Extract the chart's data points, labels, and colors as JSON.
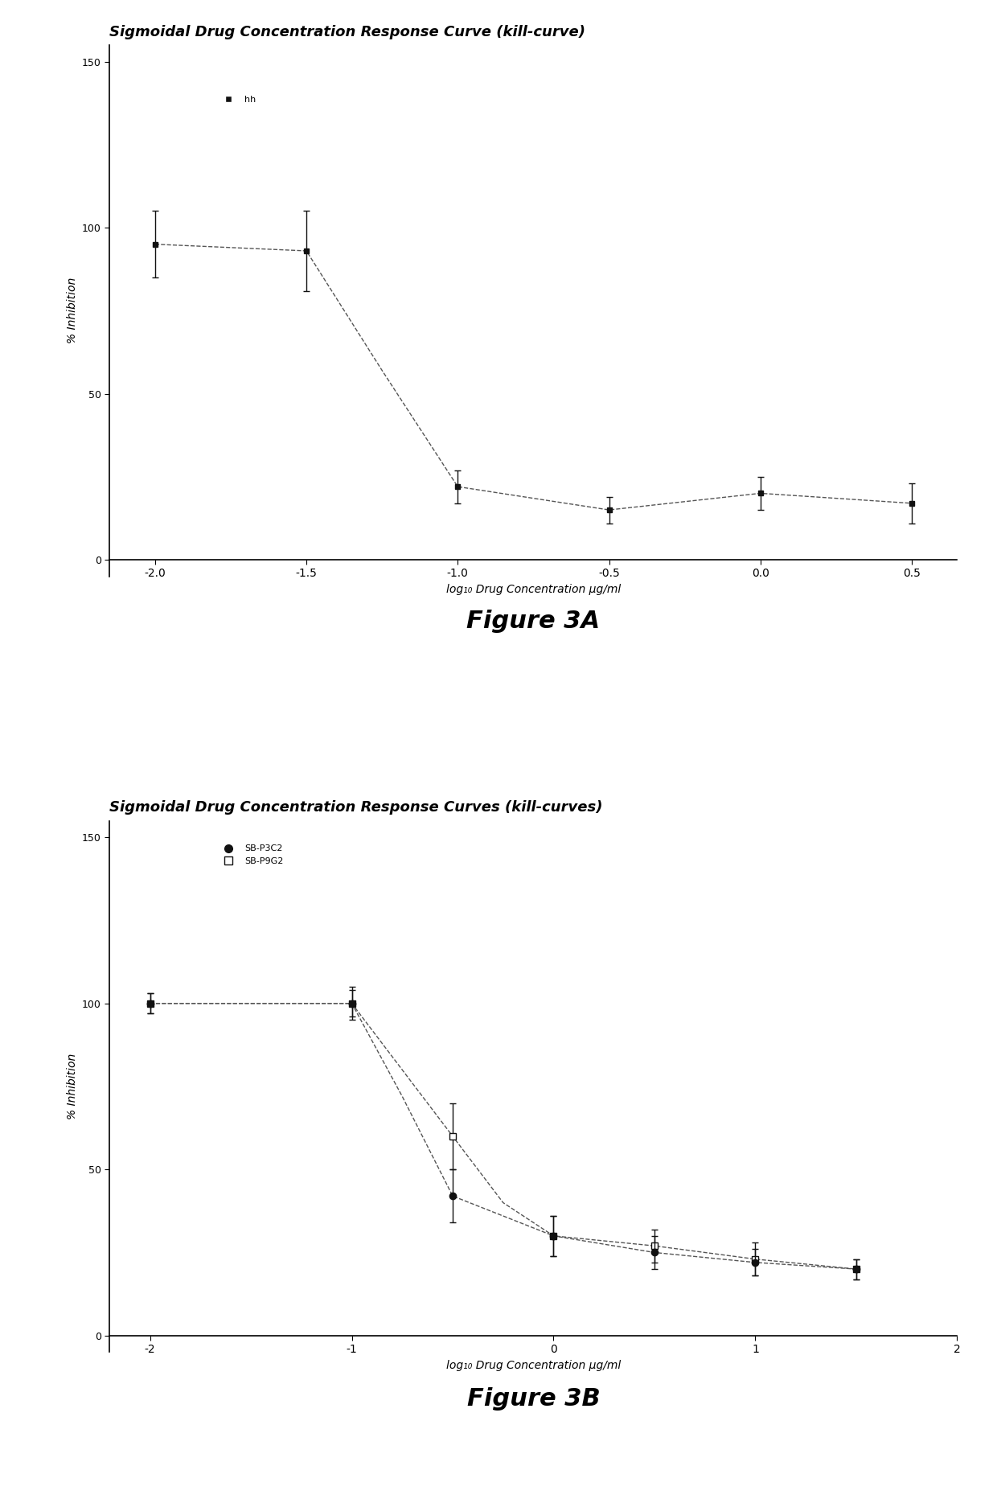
{
  "fig3a": {
    "title": "Sigmoidal Drug Concentration Response Curve (kill-curve)",
    "xlabel": "log₁₀ Drug Concentration µg/ml",
    "ylabel": "% Inhibition",
    "legend_label": "hh",
    "x": [
      -2.0,
      -1.5,
      -1.0,
      -0.5,
      0.0,
      0.5
    ],
    "y": [
      95,
      93,
      22,
      15,
      20,
      17
    ],
    "yerr": [
      10,
      12,
      5,
      4,
      5,
      6
    ],
    "xlim": [
      -2.15,
      0.65
    ],
    "ylim": [
      -5,
      155
    ],
    "yticks": [
      0,
      50,
      100,
      150
    ],
    "xticks": [
      -2.0,
      -1.5,
      -1.0,
      -0.5,
      0.0,
      0.5
    ],
    "xtick_labels": [
      "-2.0",
      "-1.5",
      "-1.0",
      "-0.5",
      "0.0",
      "0.5"
    ],
    "curve_x": [
      -2.0,
      -1.5,
      -1.25,
      -1.0,
      -0.5,
      0.0,
      0.5
    ],
    "curve_y": [
      95,
      93,
      57,
      22,
      15,
      20,
      17
    ],
    "figure_label": "Figure 3A"
  },
  "fig3b": {
    "title": "Sigmoidal Drug Concentration Response Curves (kill-curves)",
    "xlabel": "log₁₀ Drug Concentration µg/ml",
    "ylabel": "% Inhibition",
    "legend_label1": "SB-P3C2",
    "legend_label2": "SB-P9G2",
    "series1": {
      "x": [
        -2.0,
        -1.0,
        -0.5,
        0.0,
        0.5,
        1.0,
        1.5
      ],
      "y": [
        100,
        100,
        42,
        30,
        25,
        22,
        20
      ],
      "yerr": [
        3,
        4,
        8,
        6,
        5,
        4,
        3
      ],
      "curve_x": [
        -2.0,
        -1.0,
        -0.75,
        -0.5,
        0.0,
        0.5,
        1.0,
        1.5
      ],
      "curve_y": [
        100,
        100,
        72,
        42,
        30,
        25,
        22,
        20
      ]
    },
    "series2": {
      "x": [
        -2.0,
        -1.0,
        -0.5,
        0.0,
        0.5,
        1.0,
        1.5
      ],
      "y": [
        100,
        100,
        60,
        30,
        27,
        23,
        20
      ],
      "yerr": [
        3,
        5,
        10,
        6,
        5,
        5,
        3
      ],
      "curve_x": [
        -2.0,
        -1.0,
        -0.5,
        -0.25,
        0.0,
        0.5,
        1.0,
        1.5
      ],
      "curve_y": [
        100,
        100,
        60,
        40,
        30,
        27,
        23,
        20
      ]
    },
    "xlim": [
      -2.2,
      2.0
    ],
    "ylim": [
      -5,
      155
    ],
    "yticks": [
      0,
      50,
      100,
      150
    ],
    "xticks": [
      -2,
      -1,
      0,
      1,
      2
    ],
    "xtick_labels": [
      "-2",
      "-1",
      "0",
      "1",
      "2"
    ],
    "figure_label": "Figure 3B"
  },
  "bg_color": "#ffffff",
  "line_color": "#555555",
  "marker_color": "#111111",
  "marker_open_color": "#ffffff"
}
